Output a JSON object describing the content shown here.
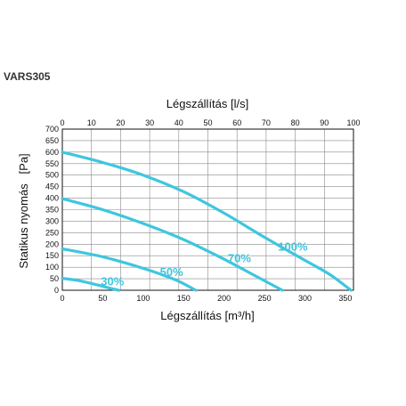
{
  "model": "VARS305",
  "chart_data": {
    "type": "line",
    "title": "",
    "top_axis": {
      "label": "Légszállítás [l/s]",
      "ticks": [
        0,
        10,
        20,
        30,
        40,
        50,
        60,
        70,
        80,
        90,
        100
      ],
      "lim": [
        0,
        100
      ]
    },
    "xlabel": "Légszállítás [m³/h]",
    "ylabel": "Statikus nyomás   [Pa]",
    "xlim": [
      0,
      360
    ],
    "ylim": [
      0,
      700
    ],
    "x_ticks": [
      0,
      50,
      100,
      150,
      200,
      250,
      300,
      350
    ],
    "y_ticks": [
      0,
      50,
      100,
      150,
      200,
      250,
      300,
      350,
      400,
      450,
      500,
      550,
      600,
      650,
      700
    ],
    "grid": true,
    "line_color": "#3ec6df",
    "series": [
      {
        "name": "100%",
        "x": [
          0,
          50,
          100,
          150,
          200,
          250,
          300,
          330,
          357
        ],
        "y": [
          600,
          555,
          500,
          428,
          335,
          230,
          130,
          70,
          0
        ]
      },
      {
        "name": "70%",
        "x": [
          0,
          50,
          100,
          150,
          200,
          240,
          272
        ],
        "y": [
          398,
          350,
          290,
          220,
          135,
          60,
          0
        ]
      },
      {
        "name": "50%",
        "x": [
          0,
          50,
          100,
          140,
          165
        ],
        "y": [
          180,
          145,
          95,
          45,
          0
        ]
      },
      {
        "name": "30%",
        "x": [
          0,
          20,
          40,
          60,
          70
        ],
        "y": [
          52,
          42,
          26,
          8,
          0
        ]
      }
    ],
    "annotations": [
      {
        "text": "100%",
        "x": 285,
        "y": 172
      },
      {
        "text": "70%",
        "x": 219,
        "y": 121
      },
      {
        "text": "50%",
        "x": 135,
        "y": 62
      },
      {
        "text": "30%",
        "x": 62,
        "y": 21
      }
    ]
  }
}
